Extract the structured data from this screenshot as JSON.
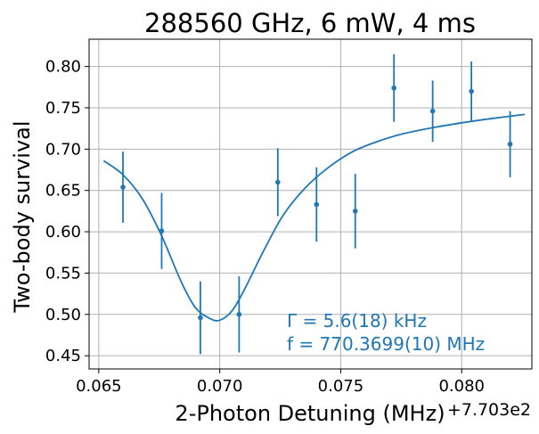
{
  "chart_data": {
    "type": "scatter",
    "title": "288560 GHz, 6 mW, 4 ms",
    "xlabel": "2-Photon Detuning (MHz)",
    "ylabel": "Two-body survival",
    "x_offset_label": "+7.703e2",
    "xlim": [
      0.0646,
      0.0829
    ],
    "ylim": [
      0.434,
      0.833
    ],
    "grid": true,
    "x_ticks": [
      0.065,
      0.07,
      0.075,
      0.08
    ],
    "x_tick_labels": [
      "0.065",
      "0.070",
      "0.075",
      "0.080"
    ],
    "y_ticks": [
      0.45,
      0.5,
      0.55,
      0.6,
      0.65,
      0.7,
      0.75,
      0.8
    ],
    "y_tick_labels": [
      "0.45",
      "0.50",
      "0.55",
      "0.60",
      "0.65",
      "0.70",
      "0.75",
      "0.80"
    ],
    "colors": {
      "series": "#1f77b4",
      "grid": "#b0b0b0",
      "axis": "#000000"
    },
    "points": [
      {
        "x": 0.066,
        "y": 0.654,
        "err": 0.043
      },
      {
        "x": 0.0676,
        "y": 0.601,
        "err": 0.046
      },
      {
        "x": 0.0692,
        "y": 0.496,
        "err": 0.044
      },
      {
        "x": 0.0708,
        "y": 0.5,
        "err": 0.046
      },
      {
        "x": 0.0724,
        "y": 0.66,
        "err": 0.041
      },
      {
        "x": 0.074,
        "y": 0.633,
        "err": 0.045
      },
      {
        "x": 0.0756,
        "y": 0.625,
        "err": 0.045
      },
      {
        "x": 0.0772,
        "y": 0.774,
        "err": 0.041
      },
      {
        "x": 0.0788,
        "y": 0.746,
        "err": 0.037
      },
      {
        "x": 0.0804,
        "y": 0.77,
        "err": 0.036
      },
      {
        "x": 0.082,
        "y": 0.706,
        "err": 0.04
      }
    ],
    "fit_curve": {
      "x": [
        0.0652,
        0.066,
        0.0668,
        0.0676,
        0.0684,
        0.069,
        0.0696,
        0.07,
        0.0705,
        0.071,
        0.0718,
        0.0726,
        0.0735,
        0.0745,
        0.0755,
        0.0765,
        0.0775,
        0.079,
        0.0805,
        0.0815,
        0.0826
      ],
      "y": [
        0.686,
        0.669,
        0.64,
        0.595,
        0.54,
        0.508,
        0.495,
        0.493,
        0.504,
        0.529,
        0.576,
        0.619,
        0.652,
        0.678,
        0.697,
        0.709,
        0.718,
        0.727,
        0.734,
        0.738,
        0.742
      ]
    },
    "annotations": [
      "Γ = 5.6(18) kHz",
      "f = 770.3699(10) MHz"
    ]
  }
}
